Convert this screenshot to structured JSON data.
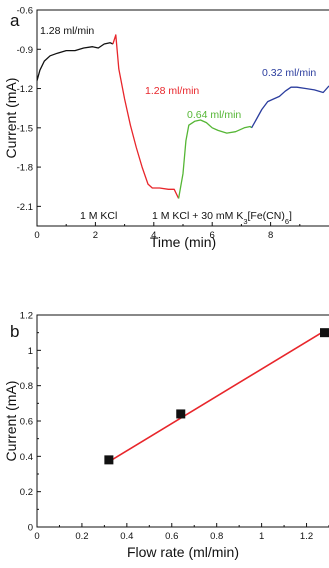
{
  "panels": [
    {
      "label": "a",
      "type": "line",
      "xlabel": "Time (min)",
      "ylabel": "Current (mA)",
      "xlim": [
        0,
        10
      ],
      "ylim": [
        -2.25,
        -0.6
      ],
      "xticks": [
        0,
        2,
        4,
        6,
        8
      ],
      "yticks": [
        -0.6,
        -0.9,
        -1.2,
        -1.5,
        -1.8,
        -2.1
      ],
      "segment_colors": [
        "#111111",
        "#e8262b",
        "#55b635",
        "#2b3d9e"
      ],
      "series": [
        {
          "color": "#111111",
          "x": [
            0.0,
            0.1,
            0.25,
            0.45,
            0.7,
            1.0,
            1.3,
            1.6,
            1.9,
            2.1,
            2.3,
            2.5,
            2.6
          ],
          "y": [
            -1.14,
            -1.06,
            -0.99,
            -0.95,
            -0.93,
            -0.91,
            -0.91,
            -0.89,
            -0.88,
            -0.89,
            -0.86,
            -0.85,
            -0.86
          ]
        },
        {
          "color": "#e8262b",
          "x": [
            2.6,
            2.7,
            2.8,
            3.0,
            3.2,
            3.4,
            3.6,
            3.8,
            3.95,
            4.2,
            4.5,
            4.7,
            4.85
          ],
          "y": [
            -0.86,
            -0.79,
            -1.05,
            -1.28,
            -1.48,
            -1.65,
            -1.8,
            -1.93,
            -1.96,
            -1.96,
            -1.97,
            -1.97,
            -2.04
          ]
        },
        {
          "color": "#55b635",
          "x": [
            4.85,
            5.0,
            5.1,
            5.2,
            5.4,
            5.6,
            5.8,
            6.0,
            6.2,
            6.5,
            6.8,
            7.1,
            7.3,
            7.35
          ],
          "y": [
            -2.04,
            -1.85,
            -1.6,
            -1.48,
            -1.45,
            -1.44,
            -1.46,
            -1.5,
            -1.52,
            -1.54,
            -1.53,
            -1.5,
            -1.49,
            -1.5
          ]
        },
        {
          "color": "#2b3d9e",
          "x": [
            7.35,
            7.5,
            7.7,
            7.9,
            8.1,
            8.3,
            8.5,
            8.7,
            8.9,
            9.2,
            9.5,
            9.8,
            10.0
          ],
          "y": [
            -1.5,
            -1.44,
            -1.36,
            -1.3,
            -1.28,
            -1.26,
            -1.22,
            -1.19,
            -1.19,
            -1.2,
            -1.21,
            -1.23,
            -1.18
          ]
        }
      ],
      "annotations": [
        {
          "text": "1.28 ml/min",
          "color": "#111111"
        },
        {
          "text": "1.28 ml/min",
          "color": "#e8262b"
        },
        {
          "text": "0.64 ml/min",
          "color": "#55b635"
        },
        {
          "text": "0.32 ml/min",
          "color": "#2b3d9e"
        },
        {
          "text": "1 M KCl",
          "color": "#111111"
        },
        {
          "text": "1 M KCl + 30 mM K",
          "color": "#111111",
          "sub1": "3",
          "mid": "[Fe(CN)",
          "sub2": "6",
          "end": "]"
        }
      ]
    },
    {
      "label": "b",
      "type": "scatter",
      "xlabel": "Flow rate (ml/min)",
      "ylabel": "Current (mA)",
      "xlim": [
        0,
        1.3
      ],
      "ylim": [
        0,
        1.2
      ],
      "xticks": [
        0,
        0.2,
        0.4,
        0.6,
        0.8,
        1,
        1.2
      ],
      "yticks": [
        0,
        0.2,
        0.4,
        0.6,
        0.8,
        1,
        1.2
      ],
      "points": {
        "x": [
          0.32,
          0.64,
          1.28
        ],
        "y": [
          0.38,
          0.64,
          1.1
        ],
        "color": "#111111"
      },
      "fit": {
        "x": [
          0.32,
          1.28
        ],
        "y": [
          0.37,
          1.11
        ],
        "color": "#e8262b"
      }
    }
  ]
}
